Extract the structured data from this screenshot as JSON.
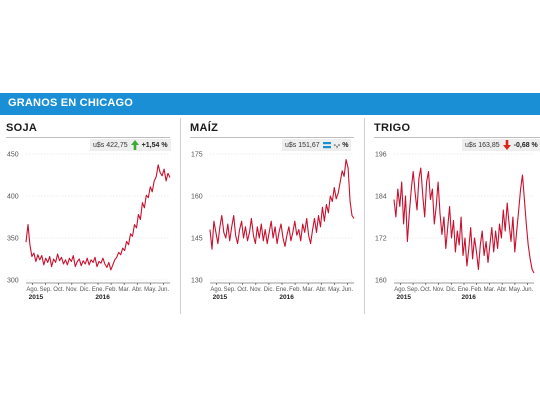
{
  "banner": {
    "title": "GRANOS EN CHICAGO"
  },
  "colors": {
    "banner": "#1a8fd6",
    "line": "#c8102e",
    "up": "#3aa935",
    "down": "#d7261e",
    "flat": "#1a8fd6"
  },
  "chart_data": [
    {
      "type": "line",
      "title": "SOJA",
      "quote": {
        "price": "u$s 422,75",
        "change": "+1,54 %",
        "trend": "up",
        "icon": "arrow-up-icon"
      },
      "ylim": [
        300,
        450
      ],
      "yticks": [
        300,
        350,
        400,
        450
      ],
      "xtick_labels": [
        "Ago.",
        "Sep.",
        "Oct.",
        "Nov.",
        "Dic.",
        "Ene.",
        "Feb.",
        "Mar.",
        "Abr.",
        "May.",
        "Jun."
      ],
      "year_labels": [
        "2015",
        "2016"
      ],
      "x_start": 0,
      "x_end": 11,
      "series": [
        {
          "y": [
            345,
            366,
            342,
            328,
            332,
            322,
            330,
            324,
            329,
            318,
            326,
            321,
            328,
            316,
            325,
            321,
            331,
            323,
            327,
            319,
            324,
            318,
            326,
            322,
            329,
            316,
            322,
            325,
            317,
            323,
            319,
            326,
            318,
            324,
            321,
            327,
            316,
            322,
            320,
            326,
            319,
            315,
            321,
            312,
            318,
            324,
            327,
            333,
            330,
            338,
            335,
            346,
            342,
            355,
            352,
            366,
            362,
            378,
            372,
            392,
            386,
            401,
            398,
            411,
            405,
            418,
            423,
            437,
            428,
            424,
            432,
            418,
            427,
            422
          ]
        }
      ]
    },
    {
      "type": "line",
      "title": "MAÍZ",
      "quote": {
        "price": "u$s 151,67",
        "change": "-,- %",
        "trend": "flat",
        "icon": "equal-icon"
      },
      "ylim": [
        130,
        175
      ],
      "yticks": [
        130,
        145,
        160,
        175
      ],
      "xtick_labels": [
        "Ago.",
        "Sep.",
        "Oct.",
        "Nov.",
        "Dic.",
        "Ene.",
        "Feb.",
        "Mar.",
        "Abr.",
        "May.",
        "Jun."
      ],
      "year_labels": [
        "2015",
        "2016"
      ],
      "x_start": 0,
      "x_end": 11,
      "series": [
        {
          "y": [
            148,
            141,
            151,
            147,
            143,
            149,
            153,
            147,
            145,
            150,
            144,
            149,
            153,
            146,
            143,
            148,
            151,
            145,
            149,
            144,
            147,
            152,
            146,
            143,
            149,
            145,
            150,
            144,
            148,
            143,
            147,
            151,
            145,
            149,
            143,
            147,
            150,
            145,
            142,
            146,
            149,
            144,
            147,
            151,
            146,
            148,
            144,
            150,
            147,
            152,
            146,
            143,
            148,
            152,
            147,
            153,
            149,
            156,
            151,
            157,
            154,
            160,
            158,
            163,
            159,
            161,
            165,
            169,
            167,
            173,
            170,
            158,
            153,
            152
          ]
        }
      ]
    },
    {
      "type": "line",
      "title": "TRIGO",
      "quote": {
        "price": "u$s 163,85",
        "change": "-0,68 %",
        "trend": "down",
        "icon": "arrow-down-icon"
      },
      "ylim": [
        160,
        196
      ],
      "yticks": [
        160,
        172,
        184,
        196
      ],
      "xtick_labels": [
        "Ago.",
        "Sep.",
        "Oct.",
        "Nov.",
        "Dic.",
        "Ene.",
        "Feb.",
        "Mar.",
        "Abr.",
        "May.",
        "Jun."
      ],
      "year_labels": [
        "2015",
        "2016"
      ],
      "x_start": 0,
      "x_end": 11,
      "series": [
        {
          "y": [
            183,
            178,
            186,
            181,
            188,
            176,
            184,
            171,
            179,
            186,
            191,
            185,
            180,
            189,
            192,
            184,
            178,
            188,
            191,
            183,
            186,
            176,
            181,
            188,
            179,
            173,
            178,
            169,
            175,
            181,
            172,
            177,
            168,
            174,
            170,
            178,
            167,
            172,
            164,
            169,
            175,
            166,
            172,
            168,
            163,
            170,
            174,
            167,
            171,
            165,
            170,
            175,
            168,
            174,
            169,
            176,
            172,
            180,
            174,
            182,
            176,
            171,
            178,
            168,
            174,
            180,
            186,
            190,
            183,
            176,
            170,
            166,
            163,
            162
          ]
        }
      ]
    }
  ]
}
